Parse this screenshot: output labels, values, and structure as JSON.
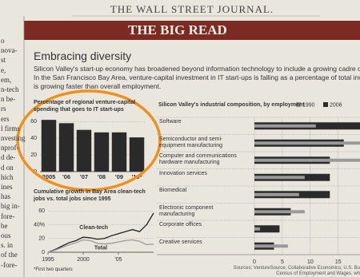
{
  "masthead": "THE WALL STREET JOURNAL.",
  "section": "THE BIG READ",
  "headline": "Embracing diversity",
  "intro": [
    "Silicon Valley's start-up economy has broadened beyond information technology to include a growing cadre of bioscience",
    "In the San Francisco Bay Area, venture-capital investment in IT start-ups is falling as a percentage of total investment, w",
    "is growing faster than overall employment."
  ],
  "column_fragments": [
    "o",
    "nova-",
    "st",
    "e,",
    "em,",
    "n-tech",
    "n be-",
    "rs",
    "ers",
    "l firms",
    "nvesting",
    "nprof-",
    "d de-",
    "d on",
    "hich",
    "ines",
    "has",
    "big in-",
    "fore-",
    "be",
    "ous",
    "s. in",
    "of the",
    "-fore-"
  ],
  "chart_data": [
    {
      "type": "bar",
      "title": "Percentage of regional venture-capital spending that goes to IT start-ups",
      "categories": [
        "2005",
        "'06",
        "'07",
        "'08",
        "'09",
        "'10*"
      ],
      "values": [
        62,
        58,
        50,
        47,
        47,
        41
      ],
      "color": "#2a2a2a",
      "ylim": [
        0,
        65
      ],
      "yticks": [
        0,
        20,
        40,
        60
      ],
      "grid": true
    },
    {
      "type": "line",
      "title": "Cumulative growth in Bay Area clean-tech jobs vs. total jobs since 1995",
      "note": "*First two quarters",
      "x": [
        1995,
        1996,
        1997,
        1998,
        1999,
        2000,
        2001,
        2002,
        2003,
        2004,
        2005,
        2006,
        2007,
        2008,
        2009,
        2010
      ],
      "series": [
        {
          "name": "Clean-tech",
          "color": "#222222",
          "values": [
            0,
            4,
            9,
            14,
            17,
            22,
            21,
            19,
            20,
            24,
            27,
            30,
            33,
            30,
            40,
            57
          ]
        },
        {
          "name": "Total",
          "color": "#9a9a9a",
          "values": [
            0,
            3,
            7,
            11,
            14,
            18,
            17,
            13,
            12,
            13,
            15,
            17,
            18,
            16,
            11,
            12
          ]
        }
      ],
      "xlim": [
        1995,
        2010
      ],
      "xticks": [
        1995,
        2000,
        {
          "value": 2005,
          "label": "'05"
        }
      ],
      "ylim": [
        0,
        65
      ],
      "yticks": [
        0,
        20,
        {
          "value": 40,
          "label": "40%"
        },
        60
      ],
      "grid": true
    },
    {
      "type": "hbar",
      "title": "Silicon Valley's industrial composition, by employment",
      "categories": [
        "Software",
        "Semiconductor and semi-equipment manufacturing",
        "Computer and communications hardware manufacturing",
        "Innovation services",
        "Biomedical",
        "Electronic component manufacturing",
        "Corporate offices",
        "Creative services"
      ],
      "series": [
        {
          "name": "1990",
          "color": "#9a9a9a",
          "values": [
            11,
            19,
            19,
            9,
            8,
            9,
            1,
            6
          ]
        },
        {
          "name": "2006",
          "color": "#2b2b2b",
          "values": [
            19,
            16,
            13.5,
            13.5,
            13.5,
            6.5,
            4.5,
            3.5
          ]
        }
      ],
      "xlim": [
        0,
        18.9
      ],
      "xticks": [
        0,
        5,
        10,
        15
      ],
      "grid": true,
      "legend": "top-right"
    }
  ],
  "source": [
    "Sources: VentureSource; Collaborative Economics; U.S. Bu",
    "Census of Employment and Wages, wh"
  ]
}
